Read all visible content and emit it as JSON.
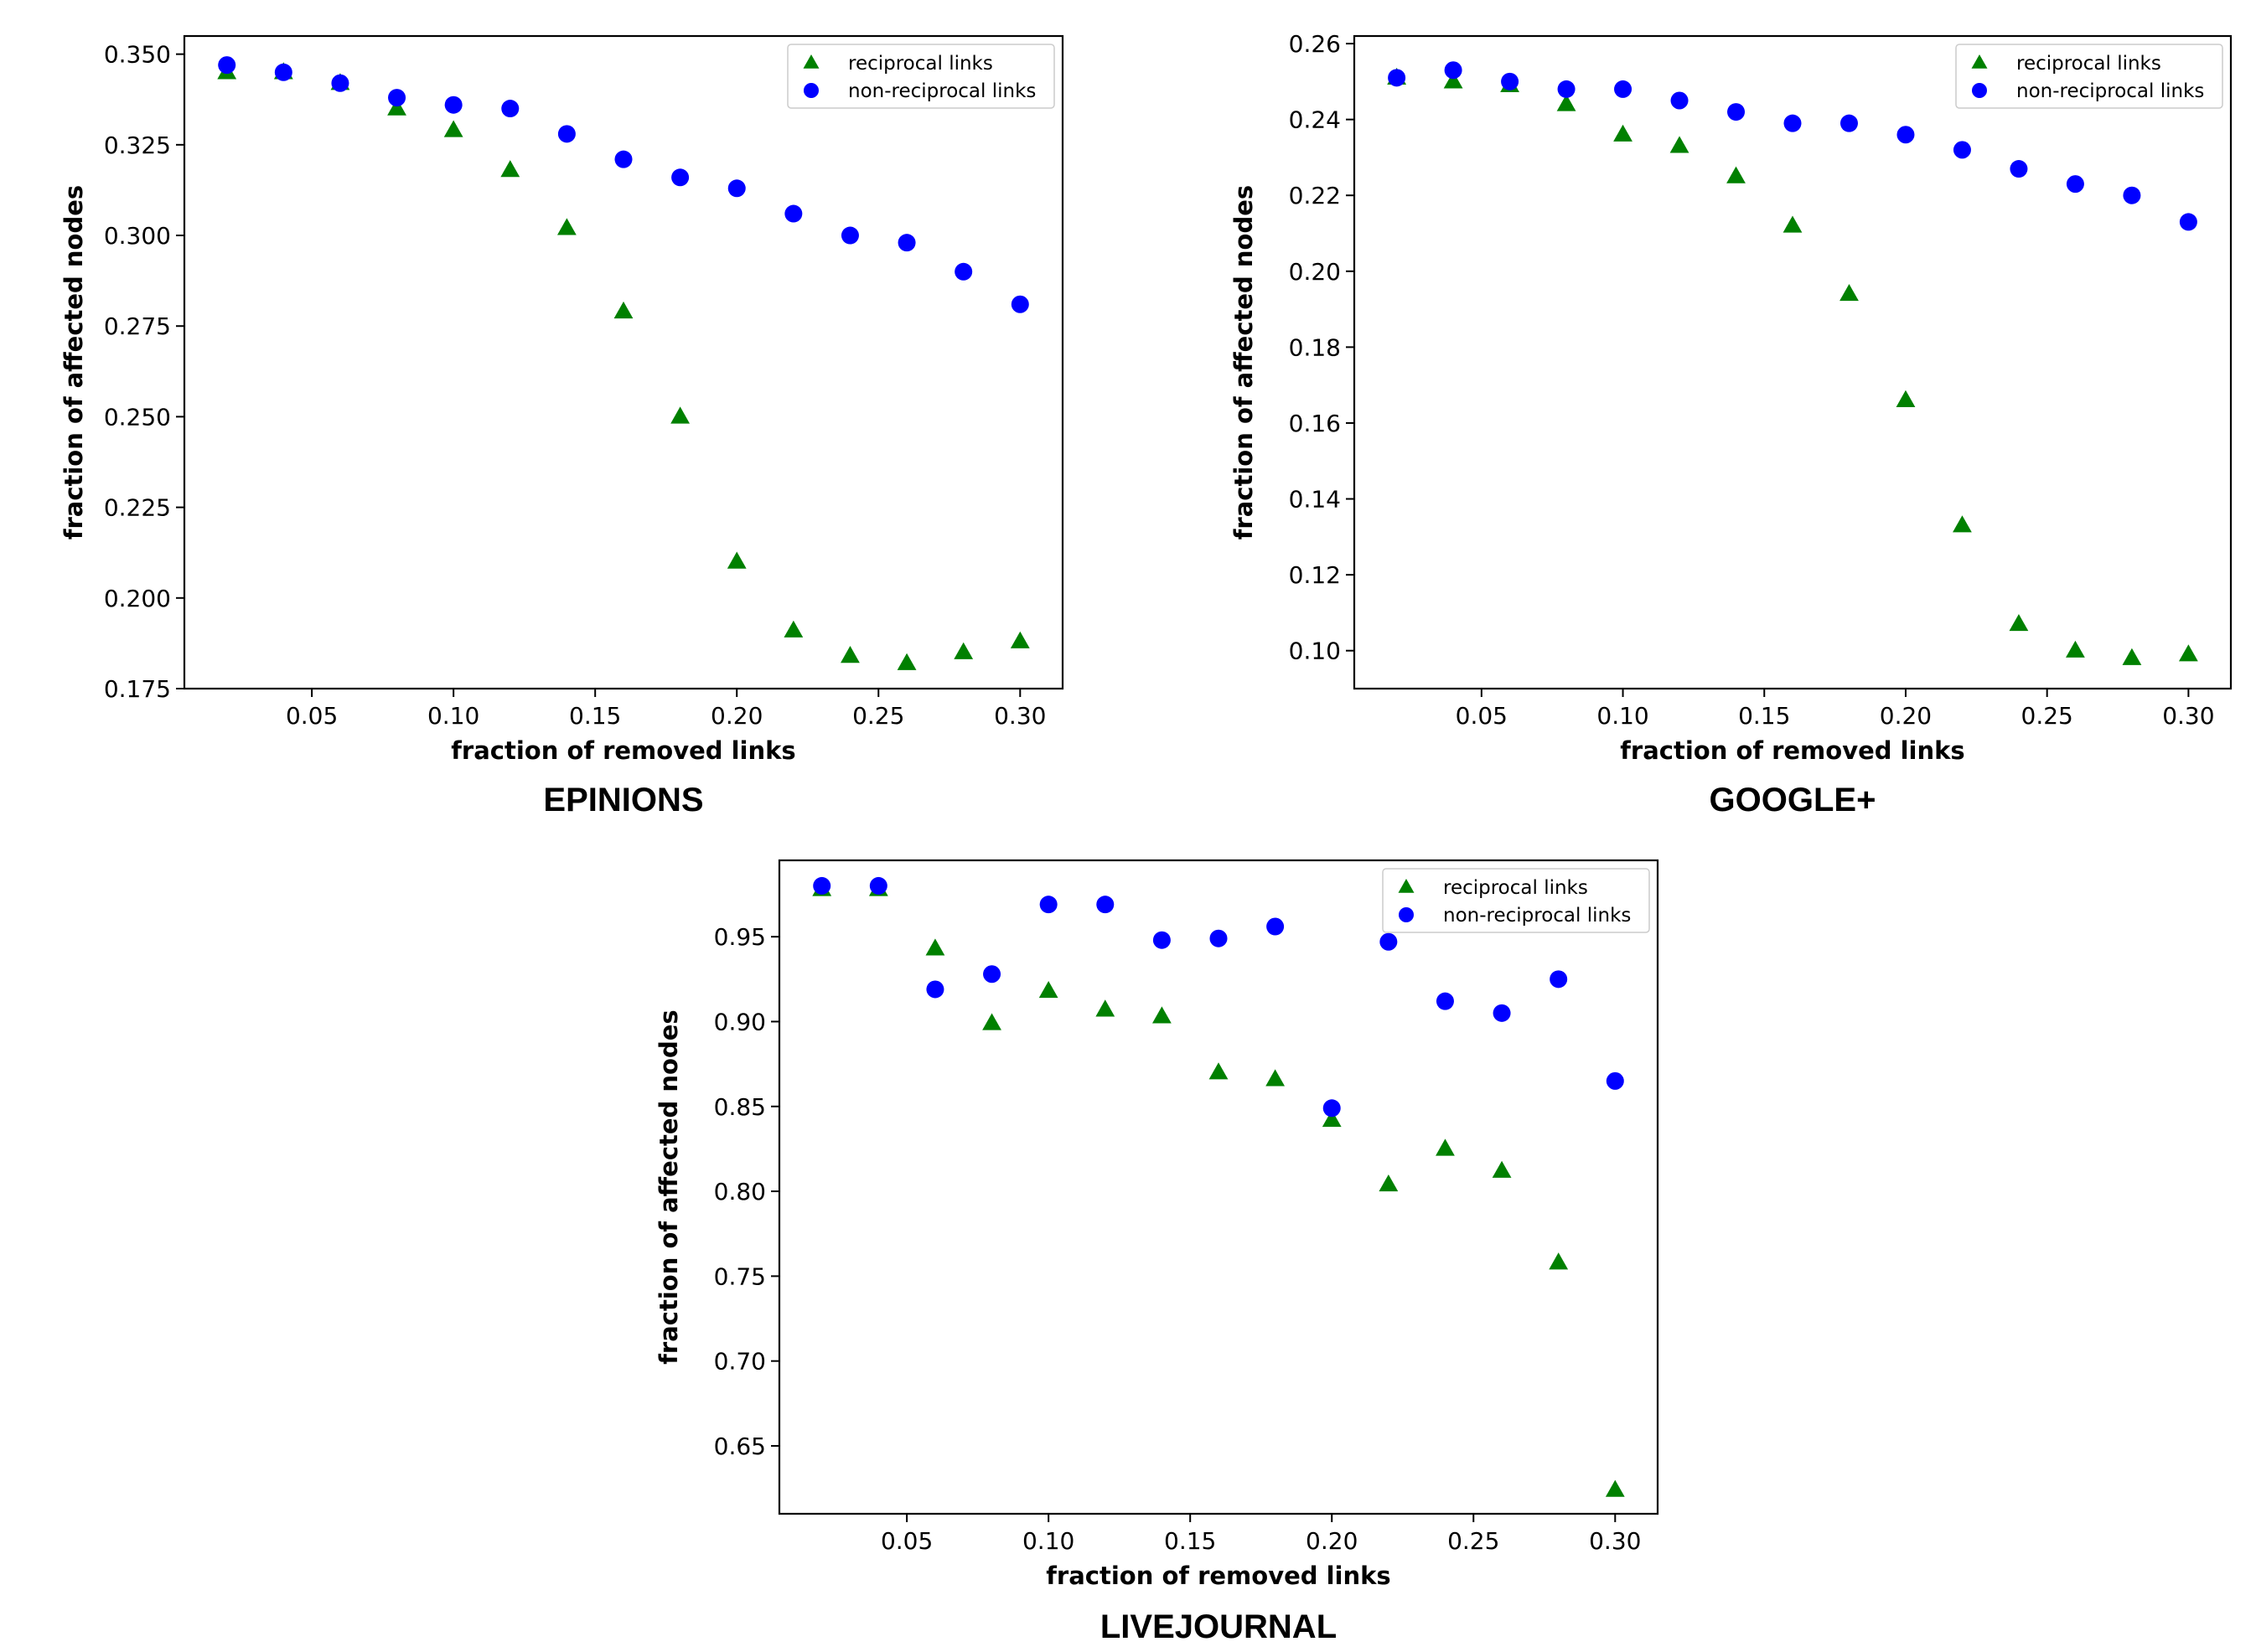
{
  "figure": {
    "colors": {
      "reciprocal": "#008000",
      "non_reciprocal": "#0000ff",
      "axis": "#000000",
      "background": "#ffffff"
    },
    "marker_shapes": {
      "reciprocal": "triangle-up",
      "non_reciprocal": "circle"
    }
  },
  "chart_data": [
    {
      "type": "scatter",
      "caption": "EPINIONS",
      "xlabel": "fraction of removed links",
      "ylabel": "fraction of affected nodes",
      "xlim": [
        0.005,
        0.315
      ],
      "ylim": [
        0.175,
        0.355
      ],
      "xticks": [
        0.05,
        0.1,
        0.15,
        0.2,
        0.25,
        0.3
      ],
      "xtick_labels": [
        "0.05",
        "0.10",
        "0.15",
        "0.20",
        "0.25",
        "0.30"
      ],
      "yticks": [
        0.175,
        0.2,
        0.225,
        0.25,
        0.275,
        0.3,
        0.325,
        0.35
      ],
      "ytick_labels": [
        "0.175",
        "0.200",
        "0.225",
        "0.250",
        "0.275",
        "0.300",
        "0.325",
        "0.350"
      ],
      "legend": [
        "reciprocal links",
        "non-reciprocal links"
      ],
      "legend_position": "upper right",
      "x": [
        0.02,
        0.04,
        0.06,
        0.08,
        0.1,
        0.12,
        0.14,
        0.16,
        0.18,
        0.2,
        0.22,
        0.24,
        0.26,
        0.28,
        0.3
      ],
      "series": [
        {
          "name": "reciprocal links",
          "marker": "triangle-up",
          "values": [
            0.345,
            0.345,
            0.342,
            0.335,
            0.329,
            0.318,
            0.302,
            0.279,
            0.25,
            0.21,
            0.191,
            0.184,
            0.182,
            0.185,
            0.188
          ]
        },
        {
          "name": "non-reciprocal links",
          "marker": "circle",
          "values": [
            0.347,
            0.345,
            0.342,
            0.338,
            0.336,
            0.335,
            0.328,
            0.321,
            0.316,
            0.313,
            0.306,
            0.3,
            0.298,
            0.29,
            0.281
          ]
        }
      ]
    },
    {
      "type": "scatter",
      "caption": "GOOGLE+",
      "xlabel": "fraction of removed links",
      "ylabel": "fraction of affected nodes",
      "xlim": [
        0.005,
        0.315
      ],
      "ylim": [
        0.09,
        0.262
      ],
      "xticks": [
        0.05,
        0.1,
        0.15,
        0.2,
        0.25,
        0.3
      ],
      "xtick_labels": [
        "0.05",
        "0.10",
        "0.15",
        "0.20",
        "0.25",
        "0.30"
      ],
      "yticks": [
        0.1,
        0.12,
        0.14,
        0.16,
        0.18,
        0.2,
        0.22,
        0.24,
        0.26
      ],
      "ytick_labels": [
        "0.10",
        "0.12",
        "0.14",
        "0.16",
        "0.18",
        "0.20",
        "0.22",
        "0.24",
        "0.26"
      ],
      "legend": [
        "reciprocal links",
        "non-reciprocal links"
      ],
      "legend_position": "upper right",
      "x": [
        0.02,
        0.04,
        0.06,
        0.08,
        0.1,
        0.12,
        0.14,
        0.16,
        0.18,
        0.2,
        0.22,
        0.24,
        0.26,
        0.28,
        0.3
      ],
      "series": [
        {
          "name": "reciprocal links",
          "marker": "triangle-up",
          "values": [
            0.251,
            0.25,
            0.249,
            0.244,
            0.236,
            0.233,
            0.225,
            0.212,
            0.194,
            0.166,
            0.133,
            0.107,
            0.1,
            0.098,
            0.099
          ]
        },
        {
          "name": "non-reciprocal links",
          "marker": "circle",
          "values": [
            0.251,
            0.253,
            0.25,
            0.248,
            0.248,
            0.245,
            0.242,
            0.239,
            0.239,
            0.236,
            0.232,
            0.227,
            0.223,
            0.22,
            0.213
          ]
        }
      ]
    },
    {
      "type": "scatter",
      "caption": "LIVEJOURNAL",
      "xlabel": "fraction of removed links",
      "ylabel": "fraction of affected nodes",
      "xlim": [
        0.005,
        0.315
      ],
      "ylim": [
        0.61,
        0.995
      ],
      "xticks": [
        0.05,
        0.1,
        0.15,
        0.2,
        0.25,
        0.3
      ],
      "xtick_labels": [
        "0.05",
        "0.10",
        "0.15",
        "0.20",
        "0.25",
        "0.30"
      ],
      "yticks": [
        0.65,
        0.7,
        0.75,
        0.8,
        0.85,
        0.9,
        0.95
      ],
      "ytick_labels": [
        "0.65",
        "0.70",
        "0.75",
        "0.80",
        "0.85",
        "0.90",
        "0.95"
      ],
      "legend": [
        "reciprocal links",
        "non-reciprocal links"
      ],
      "legend_position": "upper right",
      "x": [
        0.02,
        0.04,
        0.06,
        0.08,
        0.1,
        0.12,
        0.14,
        0.16,
        0.18,
        0.2,
        0.22,
        0.24,
        0.26,
        0.28,
        0.3
      ],
      "series": [
        {
          "name": "reciprocal links",
          "marker": "triangle-up",
          "values": [
            0.978,
            0.978,
            0.943,
            0.899,
            0.918,
            0.907,
            0.903,
            0.87,
            0.866,
            0.842,
            0.804,
            0.825,
            0.812,
            0.758,
            0.624
          ]
        },
        {
          "name": "non-reciprocal links",
          "marker": "circle",
          "values": [
            0.98,
            0.98,
            0.919,
            0.928,
            0.969,
            0.969,
            0.948,
            0.949,
            0.956,
            0.849,
            0.947,
            0.912,
            0.905,
            0.925,
            0.865
          ]
        }
      ]
    }
  ]
}
